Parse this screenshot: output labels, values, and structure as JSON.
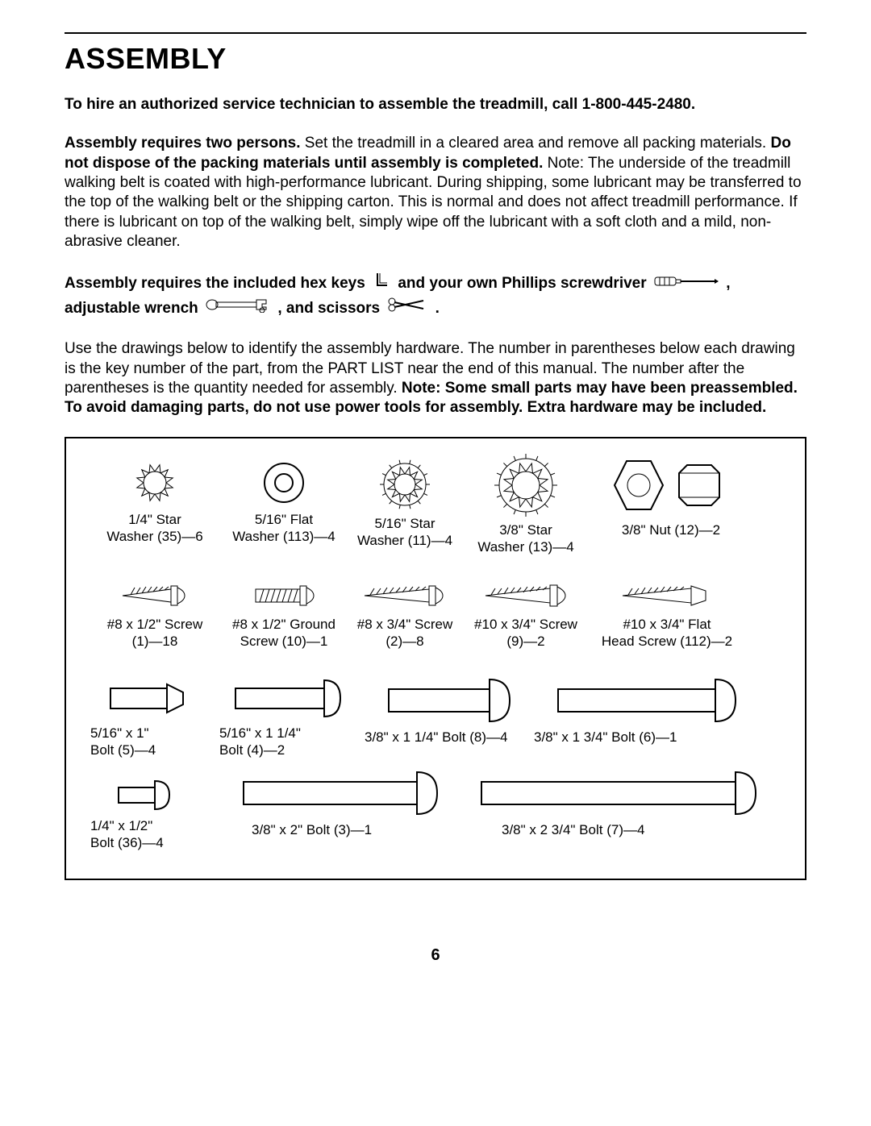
{
  "page_number": "6",
  "title": "ASSEMBLY",
  "hire_line": "To hire an authorized service technician to assemble the treadmill, call 1-800-445-2480.",
  "intro": {
    "lead_bold": "Assembly requires two persons.",
    "after_lead": " Set the treadmill in a cleared area and remove all packing materials. ",
    "mid_bold": "Do not dispose of the packing materials until assembly is completed.",
    "after_mid": " Note: The underside of the treadmill walking belt is coated with high-performance lubricant. During shipping, some lubricant may be transferred to the top of the walking belt or the shipping carton. This is normal and does not affect treadmill performance. If there is lubricant on top of the walking belt, simply wipe off the lubricant with a soft cloth and a mild, non-abrasive cleaner."
  },
  "tools": {
    "t1": "Assembly requires the included hex keys",
    "t2": "and your own Phillips screwdriver",
    "t3": ", adjustable wrench",
    "t4": ", and scissors",
    "t5": "."
  },
  "drawings_para": {
    "pre": "Use the drawings below to identify the assembly hardware. The number in parentheses below each drawing is the key number of the part, from the PART LIST near the end of this manual. The number after the parentheses is the quantity needed for assembly. ",
    "bold": "Note: Some small parts may have been preassembled. To avoid damaging parts, do not use power tools for assembly. Extra hardware may be included."
  },
  "hardware": {
    "row1": [
      {
        "l1": "1/4\" Star",
        "l2": "Washer (35)—6"
      },
      {
        "l1": "5/16\" Flat",
        "l2": "Washer (113)—4"
      },
      {
        "l1": "5/16\" Star",
        "l2": "Washer (11)—4"
      },
      {
        "l1": "3/8\" Star",
        "l2": "Washer (13)—4"
      },
      {
        "l1": "3/8\" Nut (12)—2",
        "l2": ""
      }
    ],
    "row2": [
      {
        "l1": "#8 x 1/2\" Screw",
        "l2": "(1)—18"
      },
      {
        "l1": "#8 x 1/2\" Ground",
        "l2": "Screw (10)—1"
      },
      {
        "l1": "#8 x 3/4\" Screw",
        "l2": "(2)—8"
      },
      {
        "l1": "#10 x 3/4\" Screw",
        "l2": "(9)—2"
      },
      {
        "l1": "#10 x 3/4\" Flat",
        "l2": "Head Screw (112)—2"
      }
    ],
    "row3": [
      {
        "l1": "5/16\" x 1\"",
        "l2": "Bolt (5)—4"
      },
      {
        "l1": "5/16\" x 1 1/4\"",
        "l2": "Bolt (4)—2"
      },
      {
        "l1": "3/8\" x 1 1/4\" Bolt (8)—4",
        "l2": ""
      },
      {
        "l1": "3/8\" x 1 3/4\" Bolt (6)—1",
        "l2": ""
      }
    ],
    "row4": [
      {
        "l1": "1/4\" x 1/2\"",
        "l2": "Bolt (36)—4"
      },
      {
        "l1": "3/8\" x 2\" Bolt (3)—1",
        "l2": ""
      },
      {
        "l1": "3/8\" x 2 3/4\" Bolt (7)—4",
        "l2": ""
      }
    ]
  }
}
